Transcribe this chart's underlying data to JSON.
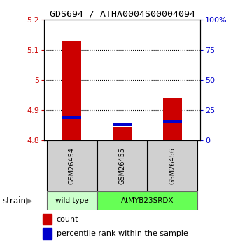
{
  "title": "GDS694 / ATHA0004S00004094",
  "samples": [
    "GSM26454",
    "GSM26455",
    "GSM26456"
  ],
  "count_values": [
    5.13,
    4.845,
    4.94
  ],
  "percentile_values": [
    4.875,
    4.853,
    4.863
  ],
  "ylim_left": [
    4.8,
    5.2
  ],
  "ylim_right": [
    0,
    100
  ],
  "yticks_left": [
    4.8,
    4.9,
    5.0,
    5.1,
    5.2
  ],
  "ytick_labels_left": [
    "4.8",
    "4.9",
    "5",
    "5.1",
    "5.2"
  ],
  "yticks_right": [
    0,
    25,
    50,
    75,
    100
  ],
  "ytick_labels_right": [
    "0",
    "25",
    "50",
    "75",
    "100%"
  ],
  "bar_color": "#cc0000",
  "percentile_color": "#0000cc",
  "left_tick_color": "#cc0000",
  "right_tick_color": "#0000cc",
  "strain_groups": [
    {
      "label": "wild type",
      "samples": [
        0
      ],
      "color": "#ccffcc"
    },
    {
      "label": "AtMYB23SRDX",
      "samples": [
        1,
        2
      ],
      "color": "#66ff55"
    }
  ],
  "strain_label": "strain",
  "legend_count_label": "count",
  "legend_percentile_label": "percentile rank within the sample",
  "sample_box_color": "#d0d0d0",
  "background_color": "#ffffff"
}
